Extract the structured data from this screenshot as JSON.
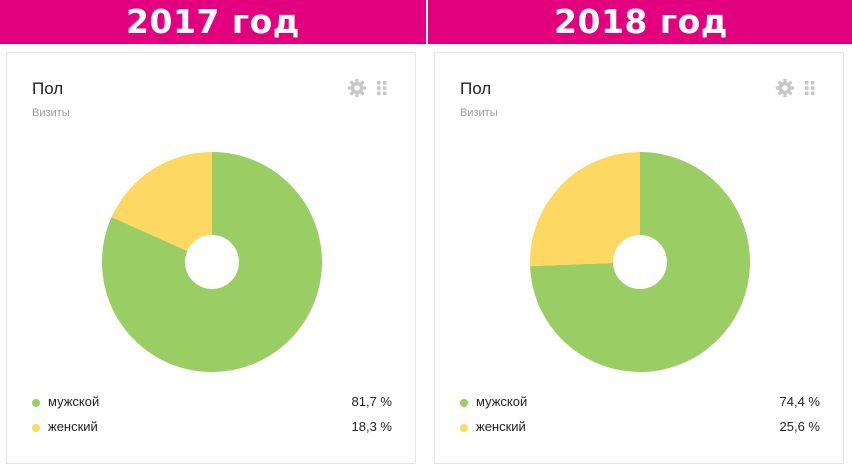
{
  "colors": {
    "header_bg": "#e2007f",
    "male": "#9acd63",
    "female": "#fdd863",
    "hole": "#ffffff"
  },
  "panels": [
    {
      "header": "2017 год",
      "title": "Пол",
      "subtitle": "Визиты",
      "icons": [
        "gear-icon",
        "drag-handle-icon"
      ],
      "legend": [
        {
          "label": "мужской",
          "value": "81,7 %"
        },
        {
          "label": "женский",
          "value": "18,3 %"
        }
      ]
    },
    {
      "header": "2018 год",
      "title": "Пол",
      "subtitle": "Визиты",
      "icons": [
        "gear-icon",
        "drag-handle-icon"
      ],
      "legend": [
        {
          "label": "мужской",
          "value": "74,4 %"
        },
        {
          "label": "женский",
          "value": "25,6 %"
        }
      ]
    }
  ],
  "chart_data": [
    {
      "type": "pie",
      "title": "Пол",
      "subtitle": "Визиты",
      "categories": [
        "мужской",
        "женский"
      ],
      "values": [
        81.7,
        18.3
      ],
      "colors": [
        "#9acd63",
        "#fdd863"
      ]
    },
    {
      "type": "pie",
      "title": "Пол",
      "subtitle": "Визиты",
      "categories": [
        "мужской",
        "женский"
      ],
      "values": [
        74.4,
        25.6
      ],
      "colors": [
        "#9acd63",
        "#fdd863"
      ]
    }
  ]
}
